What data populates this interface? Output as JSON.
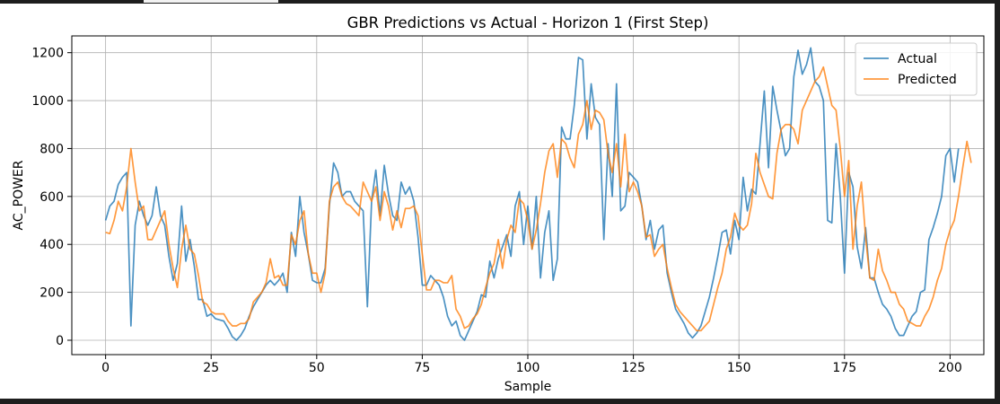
{
  "chart_data": {
    "type": "line",
    "title": "GBR Predictions vs Actual - Horizon 1 (First Step)",
    "xlabel": "Sample",
    "ylabel": "AC_POWER",
    "xlim": [
      -8,
      208
    ],
    "ylim": [
      -60,
      1270
    ],
    "xticks": [
      0,
      25,
      50,
      75,
      100,
      125,
      150,
      175,
      200
    ],
    "yticks": [
      0,
      200,
      400,
      600,
      800,
      1000,
      1200
    ],
    "grid": true,
    "legend_position": "top-right",
    "series": [
      {
        "name": "Actual",
        "color": "#1f77b4",
        "values": [
          500,
          560,
          580,
          650,
          680,
          700,
          60,
          480,
          580,
          520,
          480,
          520,
          640,
          520,
          480,
          350,
          250,
          320,
          560,
          330,
          420,
          310,
          170,
          170,
          100,
          110,
          90,
          85,
          80,
          50,
          15,
          0,
          20,
          50,
          100,
          140,
          170,
          200,
          230,
          250,
          230,
          250,
          280,
          200,
          450,
          350,
          600,
          450,
          360,
          250,
          240,
          240,
          300,
          560,
          740,
          700,
          600,
          620,
          620,
          580,
          560,
          540,
          140,
          580,
          710,
          520,
          730,
          610,
          520,
          500,
          660,
          610,
          640,
          580,
          430,
          230,
          230,
          270,
          250,
          230,
          180,
          100,
          60,
          80,
          20,
          0,
          40,
          80,
          120,
          190,
          180,
          330,
          260,
          340,
          390,
          440,
          350,
          560,
          620,
          400,
          560,
          380,
          600,
          260,
          450,
          540,
          250,
          340,
          890,
          840,
          840,
          980,
          1180,
          1170,
          840,
          1070,
          930,
          900,
          420,
          820,
          600,
          1070,
          540,
          560,
          700,
          680,
          660,
          560,
          420,
          500,
          380,
          460,
          480,
          280,
          200,
          130,
          100,
          70,
          30,
          10,
          30,
          60,
          120,
          180,
          260,
          350,
          450,
          460,
          360,
          500,
          420,
          680,
          540,
          630,
          610,
          820,
          1040,
          720,
          1060,
          960,
          870,
          770,
          800,
          1100,
          1210,
          1110,
          1150,
          1220,
          1080,
          1060,
          1000,
          500,
          490,
          820,
          600,
          280,
          700,
          640,
          390,
          300,
          470,
          260,
          260,
          200,
          150,
          130,
          100,
          50,
          20,
          20,
          60,
          100,
          120,
          200,
          210,
          420,
          470,
          530,
          600,
          770,
          800,
          660,
          800
        ]
      },
      {
        "name": "Predicted",
        "color": "#ff7f0e",
        "values": [
          450,
          445,
          500,
          580,
          540,
          640,
          800,
          660,
          540,
          560,
          420,
          420,
          460,
          500,
          540,
          400,
          300,
          220,
          380,
          480,
          380,
          360,
          270,
          160,
          150,
          120,
          110,
          110,
          110,
          80,
          60,
          60,
          70,
          70,
          90,
          160,
          180,
          200,
          240,
          340,
          260,
          270,
          230,
          230,
          440,
          400,
          500,
          540,
          360,
          280,
          280,
          200,
          280,
          580,
          640,
          660,
          600,
          570,
          560,
          540,
          520,
          660,
          620,
          580,
          640,
          500,
          620,
          560,
          460,
          540,
          470,
          550,
          550,
          560,
          520,
          360,
          210,
          210,
          250,
          250,
          240,
          240,
          270,
          130,
          100,
          50,
          60,
          90,
          110,
          150,
          220,
          280,
          320,
          420,
          300,
          420,
          480,
          450,
          590,
          570,
          500,
          380,
          460,
          570,
          700,
          790,
          820,
          680,
          840,
          820,
          760,
          720,
          860,
          900,
          1000,
          880,
          960,
          950,
          920,
          780,
          700,
          820,
          640,
          860,
          620,
          660,
          620,
          560,
          430,
          440,
          350,
          380,
          400,
          300,
          220,
          150,
          120,
          100,
          80,
          60,
          40,
          40,
          60,
          80,
          150,
          220,
          280,
          380,
          430,
          530,
          480,
          460,
          480,
          570,
          780,
          700,
          650,
          600,
          590,
          780,
          880,
          900,
          900,
          880,
          820,
          960,
          1000,
          1040,
          1080,
          1100,
          1140,
          1060,
          980,
          960,
          800,
          600,
          750,
          380,
          560,
          660,
          430,
          260,
          250,
          380,
          290,
          250,
          200,
          200,
          150,
          130,
          80,
          70,
          60,
          60,
          100,
          130,
          180,
          250,
          300,
          400,
          460,
          500,
          600,
          720,
          830,
          740
        ]
      }
    ]
  }
}
